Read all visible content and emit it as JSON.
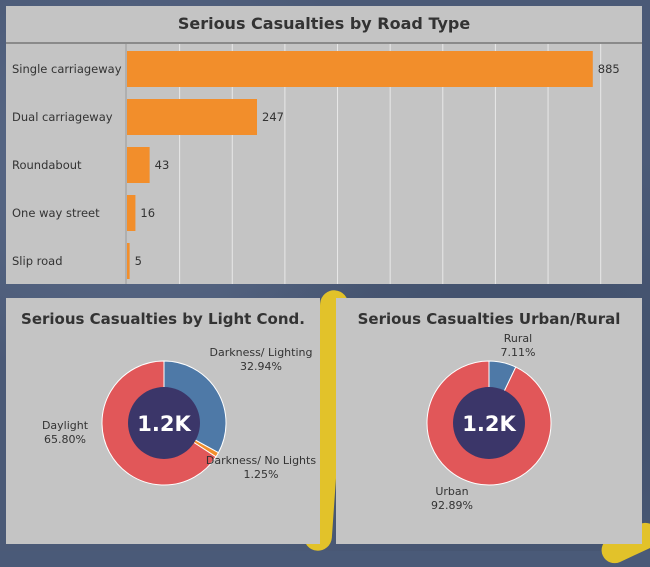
{
  "road_type": {
    "title": "Serious Casualties by Road Type"
  },
  "light": {
    "title": "Serious Casualties by Light Cond.",
    "center_label": "1.2K"
  },
  "urban": {
    "title": "Serious Casualties Urban/Rural",
    "center_label": "1.2K"
  },
  "colors": {
    "bar": "#f28e2b",
    "red": "#e15759",
    "blue": "#4e79a7",
    "orange": "#f28e2b",
    "center": "#3b3669",
    "panel": "#c4c4c4"
  },
  "chart_data": [
    {
      "type": "bar",
      "title": "Serious Casualties by Road Type",
      "orientation": "horizontal",
      "categories": [
        "Single carriageway",
        "Dual carriageway",
        "Roundabout",
        "One way street",
        "Slip road"
      ],
      "values": [
        885,
        247,
        43,
        16,
        5
      ],
      "grid": true
    },
    {
      "type": "pie",
      "title": "Serious Casualties by Light Cond.",
      "donut": true,
      "center_text": "1.2K",
      "labels": [
        "Darkness/ Lighting",
        "Darkness/ No Lights",
        "Daylight"
      ],
      "values": [
        32.94,
        1.25,
        65.8
      ],
      "value_labels": [
        "32.94%",
        "1.25%",
        "65.80%"
      ],
      "colors": [
        "#4e79a7",
        "#f28e2b",
        "#e15759"
      ]
    },
    {
      "type": "pie",
      "title": "Serious Casualties Urban/Rural",
      "donut": true,
      "center_text": "1.2K",
      "labels": [
        "Rural",
        "Urban"
      ],
      "values": [
        7.11,
        92.89
      ],
      "value_labels": [
        "7.11%",
        "92.89%"
      ],
      "colors": [
        "#4e79a7",
        "#e15759"
      ]
    }
  ]
}
